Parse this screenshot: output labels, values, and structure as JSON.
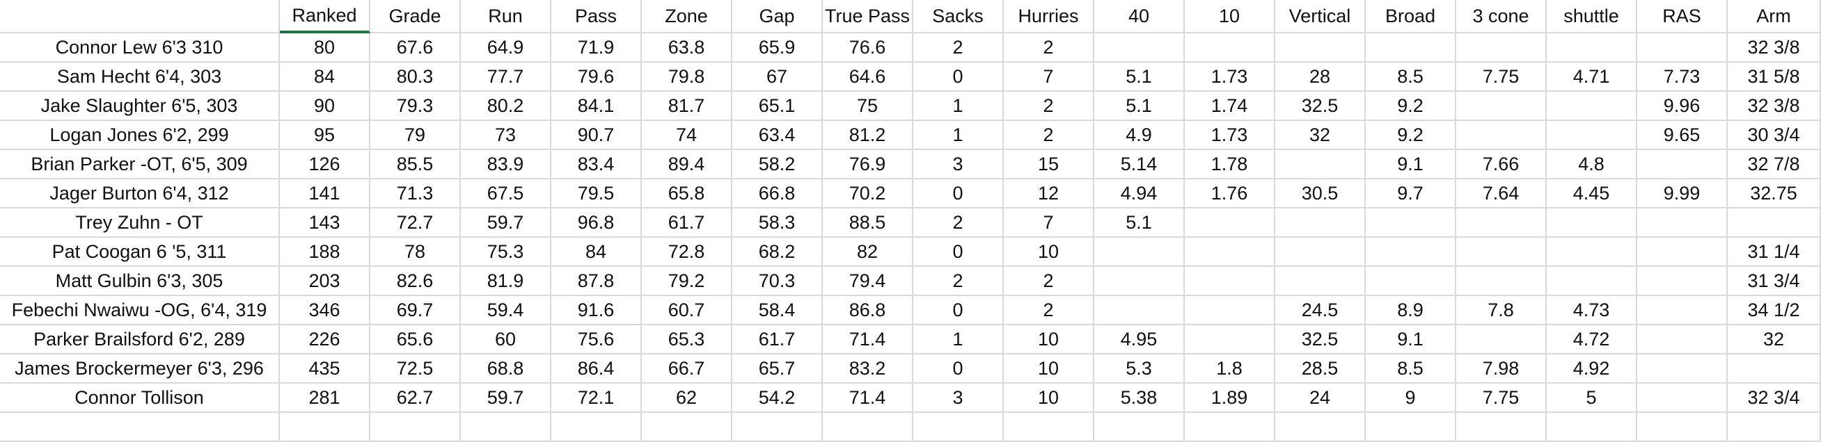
{
  "table": {
    "columns": [
      "Ranked",
      "Grade",
      "Run",
      "Pass",
      "Zone",
      "Gap",
      "True Pass",
      "Sacks",
      "Hurries",
      "40",
      "10",
      "Vertical",
      "Broad",
      "3 cone",
      "shuttle",
      "RAS",
      "Arm"
    ],
    "rows": [
      [
        "Connor Lew 6'3 310",
        80,
        67.6,
        64.9,
        71.9,
        63.8,
        65.9,
        76.6,
        2,
        2,
        null,
        null,
        null,
        null,
        null,
        null,
        null,
        "32 3/8"
      ],
      [
        "Sam Hecht 6'4, 303",
        84,
        80.3,
        77.7,
        79.6,
        79.8,
        67,
        64.6,
        0,
        7,
        5.1,
        1.73,
        28,
        8.5,
        7.75,
        4.71,
        7.73,
        "31 5/8"
      ],
      [
        "Jake Slaughter 6'5, 303",
        90,
        79.3,
        80.2,
        84.1,
        81.7,
        65.1,
        75,
        1,
        2,
        5.1,
        1.74,
        32.5,
        9.2,
        null,
        null,
        9.96,
        "32 3/8"
      ],
      [
        "Logan Jones 6'2, 299",
        95,
        79,
        73,
        90.7,
        74,
        63.4,
        81.2,
        1,
        2,
        4.9,
        1.73,
        32,
        9.2,
        null,
        null,
        9.65,
        "30 3/4"
      ],
      [
        "Brian Parker -OT, 6'5, 309",
        126,
        85.5,
        83.9,
        83.4,
        89.4,
        58.2,
        76.9,
        3,
        15,
        5.14,
        1.78,
        null,
        9.1,
        7.66,
        4.8,
        null,
        "32 7/8"
      ],
      [
        "Jager Burton 6'4, 312",
        141,
        71.3,
        67.5,
        79.5,
        65.8,
        66.8,
        70.2,
        0,
        12,
        4.94,
        1.76,
        30.5,
        9.7,
        7.64,
        4.45,
        9.99,
        32.75
      ],
      [
        "Trey Zuhn - OT",
        143,
        72.7,
        59.7,
        96.8,
        61.7,
        58.3,
        88.5,
        2,
        7,
        5.1,
        null,
        null,
        null,
        null,
        null,
        null,
        null
      ],
      [
        "Pat Coogan 6 '5, 311",
        188,
        78,
        75.3,
        84,
        72.8,
        68.2,
        82,
        0,
        10,
        null,
        null,
        null,
        null,
        null,
        null,
        null,
        "31 1/4"
      ],
      [
        "Matt Gulbin 6'3, 305",
        203,
        82.6,
        81.9,
        87.8,
        79.2,
        70.3,
        79.4,
        2,
        2,
        null,
        null,
        null,
        null,
        null,
        null,
        null,
        "31 3/4"
      ],
      [
        "Febechi Nwaiwu -OG, 6'4, 319",
        346,
        69.7,
        59.4,
        91.6,
        60.7,
        58.4,
        86.8,
        0,
        2,
        null,
        null,
        24.5,
        8.9,
        7.8,
        4.73,
        null,
        "34 1/2"
      ],
      [
        "Parker Brailsford 6'2, 289",
        226,
        65.6,
        60,
        75.6,
        65.3,
        61.7,
        71.4,
        1,
        10,
        4.95,
        null,
        32.5,
        9.1,
        null,
        4.72,
        null,
        32
      ],
      [
        "James Brockermeyer 6'3, 296",
        435,
        72.5,
        68.8,
        86.4,
        66.7,
        65.7,
        83.2,
        0,
        10,
        5.3,
        1.8,
        28.5,
        8.5,
        7.98,
        4.92,
        null,
        null
      ],
      [
        "Connor Tollison",
        281,
        62.7,
        59.7,
        72.1,
        62,
        54.2,
        71.4,
        3,
        10,
        5.38,
        1.89,
        24,
        9,
        7.75,
        5,
        null,
        "32 3/4"
      ]
    ]
  }
}
